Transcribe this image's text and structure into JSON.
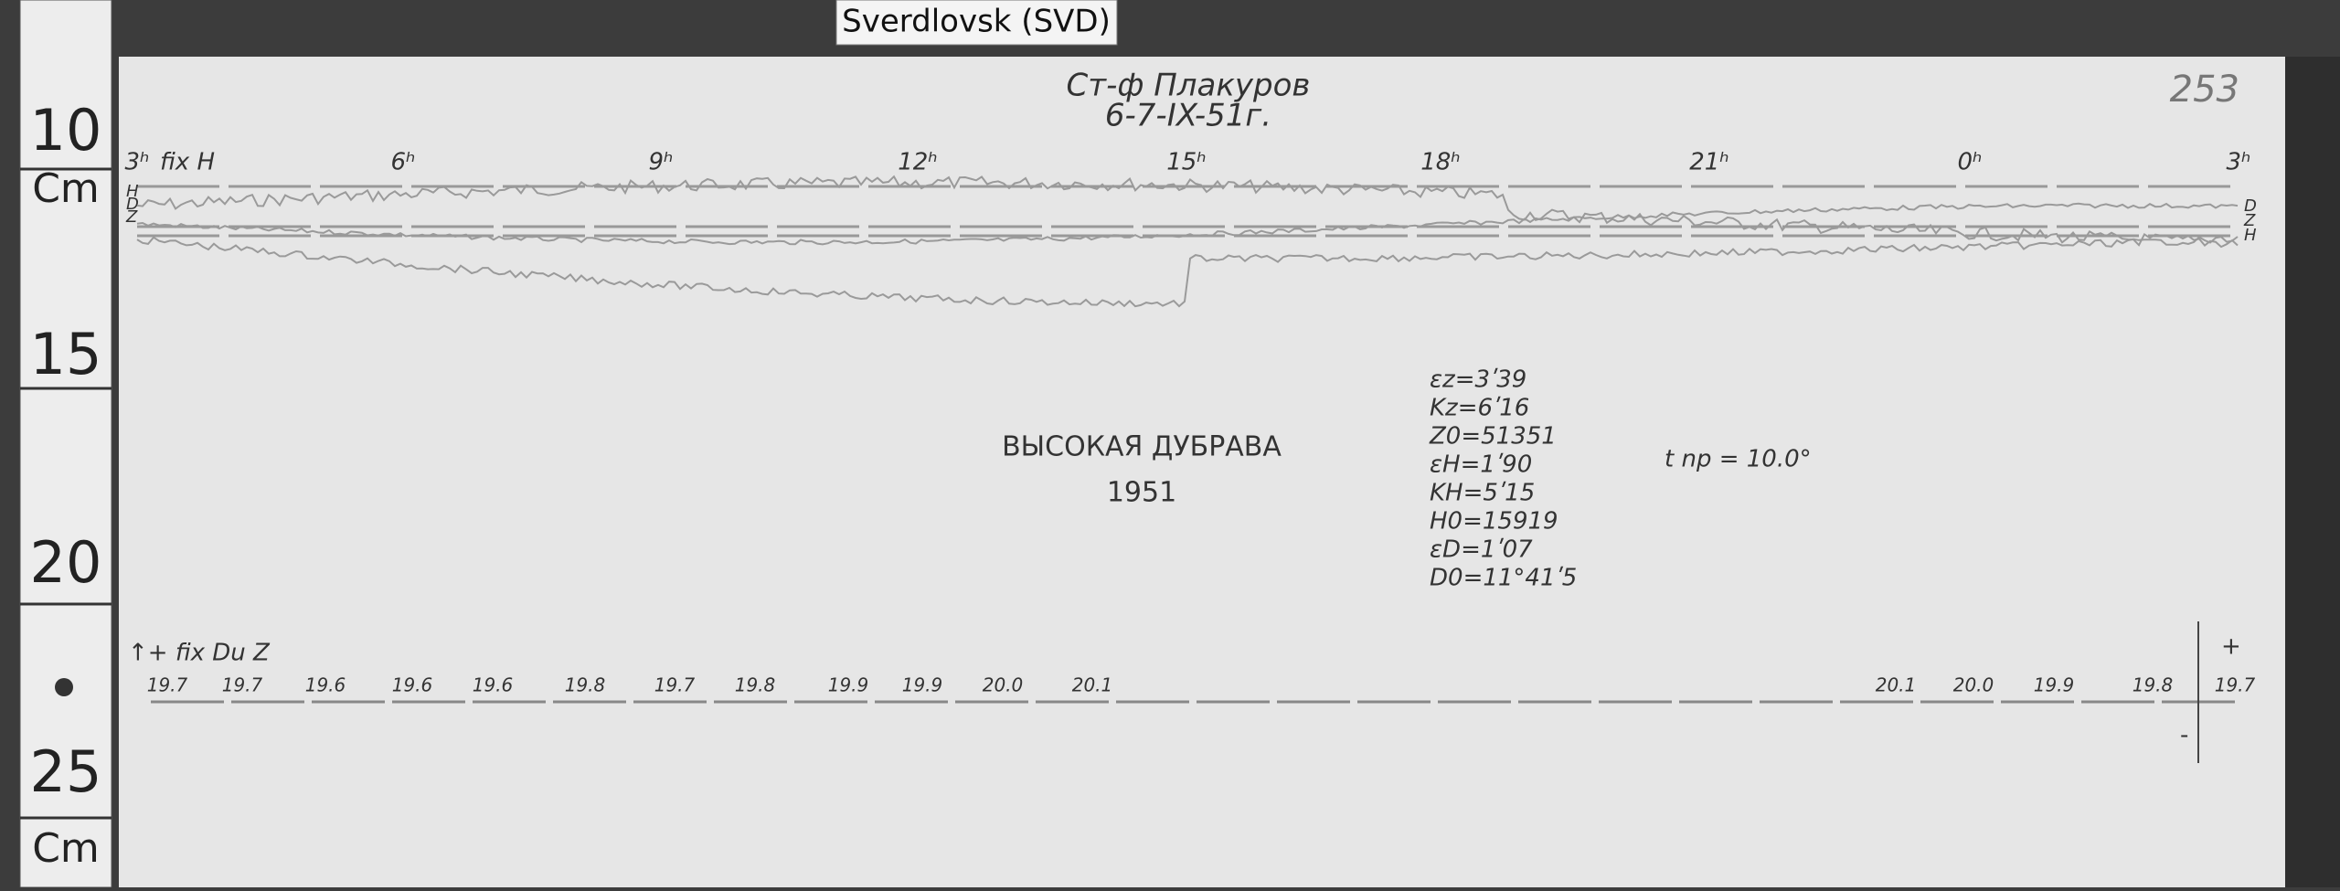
{
  "tag": "Sverdlovsk (SVD)",
  "ruler": {
    "labels": [
      "10",
      "Cm",
      "15",
      "20",
      "25",
      "Cm"
    ]
  },
  "header": {
    "station": "Ст-ф Плакуров",
    "date": "6-7-IX-51г.",
    "sheet": "253"
  },
  "hours": [
    "3ʰ",
    "6ʰ",
    "9ʰ",
    "12ʰ",
    "15ʰ",
    "18ʰ",
    "21ʰ",
    "0ʰ",
    "3ʰ"
  ],
  "trace_labels": {
    "fix": "fix H",
    "left": [
      "H",
      "D",
      "Z"
    ],
    "right": [
      "D",
      "Z",
      "H"
    ]
  },
  "place": {
    "name": "ВЫСОКАЯ ДУБРАВА",
    "year": "1951"
  },
  "constants": [
    "εz=3ʹ39",
    "Kz=6ʹ16",
    "Z0=51351",
    "εH=1ʹ90",
    "KH=5ʹ15",
    "H0=15919",
    "εD=1ʹ07",
    "D0=11°41ʹ5"
  ],
  "temp_note": "t np = 10.0°",
  "thermo": {
    "label": "↑+ fix Du Z",
    "readings": [
      "19.7",
      "19.7",
      "19.6",
      "19.6",
      "19.6",
      "19.8",
      "19.7",
      "19.8",
      "19.9",
      "19.9",
      "20.0",
      "20.1",
      "20.1",
      "20.0",
      "19.9",
      "19.8",
      "19.7"
    ],
    "plus": "+",
    "minus": "-"
  }
}
